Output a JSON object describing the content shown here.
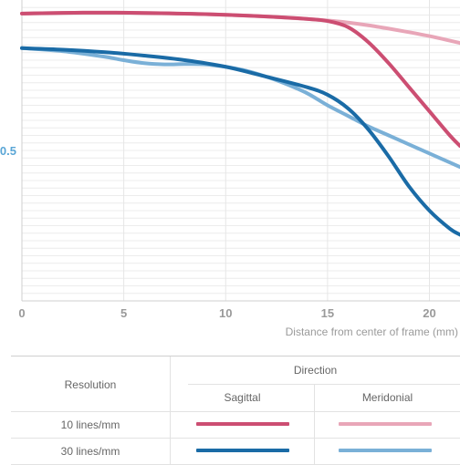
{
  "chart_data": {
    "type": "line",
    "xlabel": "Distance from center of frame (mm)",
    "xlim": [
      0,
      21.5
    ],
    "ylim": [
      0,
      1
    ],
    "x_ticks": [
      0,
      5,
      10,
      15,
      20
    ],
    "y_ticks": [
      {
        "value": 0.5,
        "label": "0.5"
      }
    ],
    "grid": true,
    "series": [
      {
        "key": "s10",
        "color": "#cc4e72",
        "x": [
          0,
          3,
          6,
          9,
          12,
          14,
          15,
          16,
          17,
          18,
          19,
          20,
          21,
          21.5
        ],
        "y": [
          0.955,
          0.958,
          0.957,
          0.953,
          0.945,
          0.937,
          0.93,
          0.91,
          0.86,
          0.79,
          0.71,
          0.63,
          0.55,
          0.515
        ]
      },
      {
        "key": "m10",
        "color": "#e8a6b8",
        "x": [
          0,
          3,
          6,
          9,
          12,
          15,
          16,
          17,
          18,
          19,
          20,
          21,
          21.5
        ],
        "y": [
          0.955,
          0.958,
          0.957,
          0.953,
          0.945,
          0.932,
          0.925,
          0.916,
          0.905,
          0.893,
          0.88,
          0.865,
          0.857
        ]
      },
      {
        "key": "s30",
        "color": "#1a6ba6",
        "x": [
          0,
          2,
          4,
          6,
          8,
          10,
          12,
          14,
          15,
          16,
          17,
          18,
          19,
          20,
          21,
          21.5
        ],
        "y": [
          0.84,
          0.835,
          0.827,
          0.815,
          0.8,
          0.778,
          0.745,
          0.71,
          0.685,
          0.64,
          0.57,
          0.48,
          0.38,
          0.3,
          0.24,
          0.22
        ]
      },
      {
        "key": "m30",
        "color": "#7ab0d7",
        "x": [
          0,
          2,
          4,
          5,
          6,
          7,
          8,
          9,
          10,
          11,
          12,
          13,
          14,
          15,
          16,
          17,
          18,
          19,
          20,
          21,
          21.5
        ],
        "y": [
          0.84,
          0.83,
          0.812,
          0.8,
          0.79,
          0.786,
          0.787,
          0.786,
          0.778,
          0.765,
          0.745,
          0.72,
          0.69,
          0.65,
          0.615,
          0.58,
          0.55,
          0.52,
          0.49,
          0.46,
          0.445
        ]
      }
    ]
  },
  "table": {
    "resolution_header": "Resolution",
    "direction_header": "Direction",
    "columns": [
      "Sagittal",
      "Meridonial"
    ],
    "rows": [
      {
        "label": "10 lines/mm",
        "sagittal_color": "#cc4e72",
        "meridional_color": "#e8a6b8"
      },
      {
        "label": "30 lines/mm",
        "sagittal_color": "#1a6ba6",
        "meridional_color": "#7ab0d7"
      }
    ]
  }
}
